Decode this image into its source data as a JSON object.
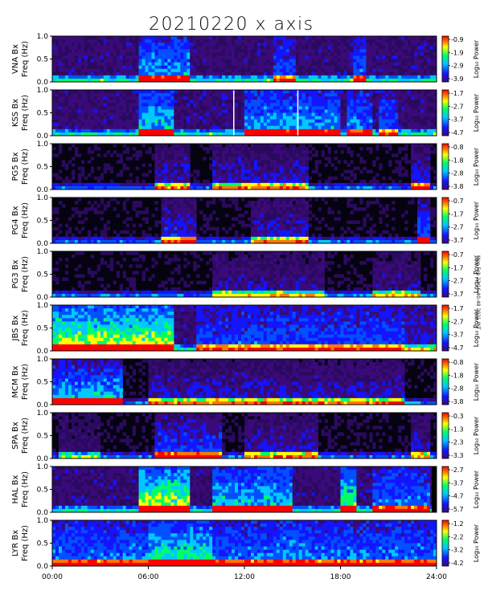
{
  "title": "20210220  x axis",
  "stamp_text": "Mon Feb 22 16:40:48 2021 INT",
  "x_tick_labels": [
    "00:00",
    "06:00",
    "12:00",
    "18:00",
    "24:00"
  ],
  "chart_data": {
    "type": "heatmap",
    "title": "20210220  x axis",
    "x_range_hours": [
      0,
      24
    ],
    "x_ticks": [
      "00:00",
      "06:00",
      "12:00",
      "18:00",
      "24:00"
    ],
    "y_range_hz": [
      0,
      1.0
    ],
    "y_ticks": [
      "0.0",
      "0.5",
      "1.0"
    ],
    "colorscale": [
      "#000000",
      "#3b0a7a",
      "#1414ff",
      "#00c8ff",
      "#00ff64",
      "#ffff00",
      "#ff7800",
      "#ff0000"
    ],
    "colorbar_label": "Log₁₀ Power",
    "panels": [
      {
        "station": "VNA Bx",
        "ylabel_line2": "Freq (Hz)",
        "colorbar_ticks": [
          "-0.9",
          "-1.9",
          "-2.9",
          "-3.9"
        ],
        "background": "dense",
        "activity": [
          [
            5.5,
            8.5,
            0.6
          ],
          [
            13.8,
            15.2,
            0.4
          ],
          [
            18.8,
            19.6,
            0.5
          ]
        ]
      },
      {
        "station": "KSS Bx",
        "ylabel_line2": "Freq (Hz)",
        "colorbar_ticks": [
          "-1.7",
          "-2.7",
          "-3.7",
          "-4.7"
        ],
        "background": "dense",
        "activity": [
          [
            5.5,
            7.5,
            0.7
          ],
          [
            12.0,
            18.0,
            0.6
          ],
          [
            18.5,
            20.0,
            0.5
          ],
          [
            20.5,
            21.5,
            0.4
          ]
        ],
        "data_gaps": [
          11.3,
          15.3
        ]
      },
      {
        "station": "PG5 Bx",
        "ylabel_line2": "Freq (Hz)",
        "colorbar_ticks": [
          "-0.8",
          "-1.8",
          "-2.8",
          "-3.8"
        ],
        "background": "sparse",
        "activity": [
          [
            6.5,
            8.5,
            0.5
          ],
          [
            10.0,
            16.0,
            0.5
          ],
          [
            22.5,
            23.5,
            0.6
          ]
        ]
      },
      {
        "station": "PG4 Bx",
        "ylabel_line2": "Freq (Hz)",
        "colorbar_ticks": [
          "-0.7",
          "-1.7",
          "-2.7",
          "-3.7"
        ],
        "background": "sparse",
        "activity": [
          [
            6.8,
            9.0,
            0.6
          ],
          [
            12.5,
            16.0,
            0.5
          ],
          [
            22.8,
            23.5,
            0.8
          ]
        ]
      },
      {
        "station": "PG3 Bx",
        "ylabel_line2": "Freq (Hz)",
        "colorbar_ticks": [
          "-0.7",
          "-1.7",
          "-2.7",
          "-3.7"
        ],
        "background": "sparse",
        "activity": [
          [
            10.0,
            17.0,
            0.4
          ],
          [
            20.0,
            23.0,
            0.4
          ]
        ]
      },
      {
        "station": "JBS Bx",
        "ylabel_line2": "Freq (Hz)",
        "colorbar_ticks": [
          "-1.7",
          "-2.7",
          "-3.7",
          "-4.7"
        ],
        "background": "dense",
        "activity": [
          [
            0.0,
            7.5,
            1.0
          ],
          [
            9.0,
            22.0,
            0.4
          ],
          [
            18.5,
            24.0,
            0.2
          ]
        ]
      },
      {
        "station": "MCM Bx",
        "ylabel_line2": "Freq (Hz)",
        "colorbar_ticks": [
          "-0.8",
          "-1.8",
          "-2.8",
          "-3.8"
        ],
        "background": "sparse",
        "activity": [
          [
            0.0,
            4.3,
            1.0
          ],
          [
            6.0,
            22.0,
            0.5
          ]
        ]
      },
      {
        "station": "SPA Bx",
        "ylabel_line2": "Freq (Hz)",
        "colorbar_ticks": [
          "-0.3",
          "-1.3",
          "-2.3",
          "-3.3"
        ],
        "background": "sparse",
        "activity": [
          [
            0.5,
            3.0,
            0.3
          ],
          [
            6.5,
            10.5,
            0.7
          ],
          [
            12.0,
            16.5,
            0.5
          ],
          [
            22.5,
            23.5,
            0.5
          ]
        ]
      },
      {
        "station": "HAL Bx",
        "ylabel_line2": "Freq (Hz)",
        "colorbar_ticks": [
          "-2.7",
          "-3.7",
          "-4.7",
          "-5.7"
        ],
        "background": "dense",
        "activity": [
          [
            5.5,
            8.5,
            1.0
          ],
          [
            10.0,
            15.0,
            0.7
          ],
          [
            18.0,
            19.0,
            0.9
          ],
          [
            20.0,
            23.5,
            0.5
          ]
        ],
        "data_gaps": [
          23.7
        ]
      },
      {
        "station": "LYR Bx",
        "ylabel_line2": "Freq (Hz)",
        "colorbar_ticks": [
          "-1.2",
          "-2.2",
          "-3.2",
          "-4.2"
        ],
        "background": "dense",
        "activity": [
          [
            0.0,
            24.0,
            0.5
          ],
          [
            6.0,
            10.0,
            0.8
          ],
          [
            14.0,
            16.0,
            0.6
          ]
        ]
      }
    ]
  }
}
